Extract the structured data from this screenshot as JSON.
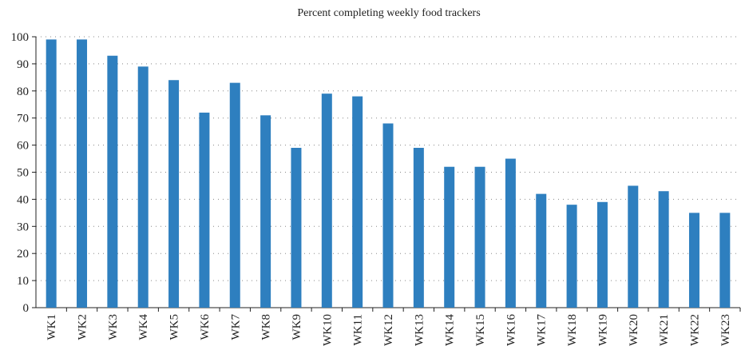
{
  "chart_data": {
    "type": "bar",
    "title": "Percent completing weekly food trackers",
    "categories": [
      "WK1",
      "WK2",
      "WK3",
      "WK4",
      "WK5",
      "WK6",
      "WK7",
      "WK8",
      "WK9",
      "WK10",
      "WK11",
      "WK12",
      "WK13",
      "WK14",
      "WK15",
      "WK16",
      "WK17",
      "WK18",
      "WK19",
      "WK20",
      "WK21",
      "WK22",
      "WK23"
    ],
    "values": [
      99,
      99,
      93,
      89,
      84,
      72,
      83,
      71,
      59,
      79,
      78,
      68,
      59,
      52,
      52,
      55,
      42,
      38,
      39,
      45,
      43,
      35,
      35
    ],
    "color": "#2e7fbf",
    "ylim": [
      0,
      100
    ],
    "yticks": [
      0,
      10,
      20,
      30,
      40,
      50,
      60,
      70,
      80,
      90,
      100
    ],
    "grid": true
  }
}
